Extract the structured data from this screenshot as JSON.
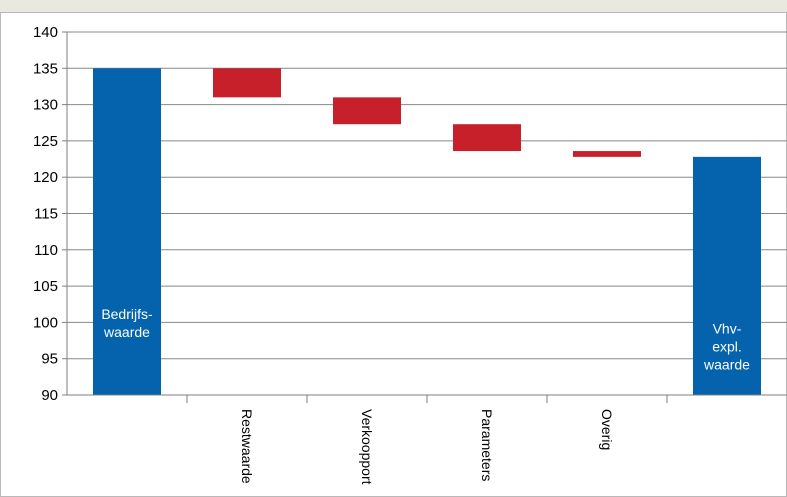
{
  "colors": {
    "total_bar": "#0563ad",
    "delta_bar": "#c8202a",
    "axis": "#7f7f7f",
    "grid": "#888888"
  },
  "chart_data": {
    "type": "bar",
    "subtype": "waterfall",
    "categories": [
      "",
      "Restwaarde",
      "Verkoopport",
      "Parameters",
      "Overig",
      ""
    ],
    "bars": [
      {
        "category_index": 0,
        "kind": "total",
        "start": 90,
        "end": 135,
        "inner_label": [
          "Bedrijfs-",
          "waarde"
        ]
      },
      {
        "category_index": 1,
        "kind": "decrease",
        "start": 135,
        "end": 131,
        "inner_label": []
      },
      {
        "category_index": 2,
        "kind": "decrease",
        "start": 131,
        "end": 127.3,
        "inner_label": []
      },
      {
        "category_index": 3,
        "kind": "decrease",
        "start": 127.3,
        "end": 123.6,
        "inner_label": []
      },
      {
        "category_index": 4,
        "kind": "decrease",
        "start": 123.6,
        "end": 122.8,
        "inner_label": []
      },
      {
        "category_index": 5,
        "kind": "total",
        "start": 90,
        "end": 122.8,
        "inner_label": [
          "Vhv-",
          "expl.",
          "waarde"
        ]
      }
    ],
    "y_ticks": [
      90,
      95,
      100,
      105,
      110,
      115,
      120,
      125,
      130,
      135,
      140
    ],
    "ylim": [
      90,
      140
    ],
    "grid": true,
    "xlabel": "",
    "ylabel": ""
  }
}
